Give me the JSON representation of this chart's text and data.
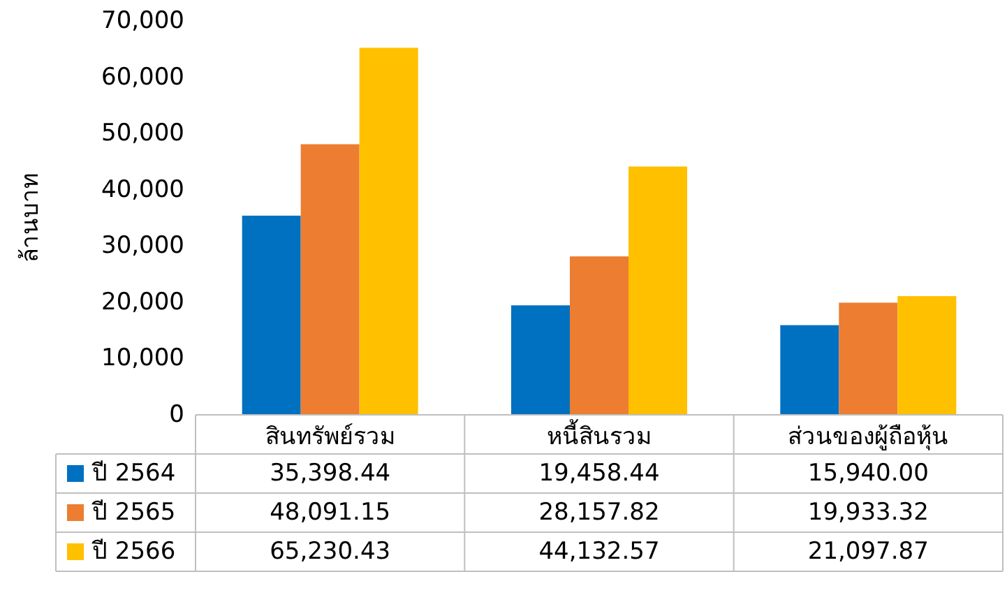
{
  "chart_data": {
    "type": "bar",
    "ylabel": "ล้านบาท",
    "categories": [
      "สินทรัพย์รวม",
      "หนี้สินรวม",
      "ส่วนของผู้ถือหุ้น"
    ],
    "series": [
      {
        "name": "ปี 2564",
        "color": "#0070c0",
        "values": [
          35398.44,
          19458.44,
          15940.0
        ],
        "value_labels": [
          "35,398.44",
          "19,458.44",
          "15,940.00"
        ]
      },
      {
        "name": "ปี 2565",
        "color": "#ed7d31",
        "values": [
          48091.15,
          28157.82,
          19933.32
        ],
        "value_labels": [
          "48,091.15",
          "28,157.82",
          "19,933.32"
        ]
      },
      {
        "name": "ปี 2566",
        "color": "#ffc000",
        "values": [
          65230.43,
          44132.57,
          21097.87
        ],
        "value_labels": [
          "65,230.43",
          "44,132.57",
          "21,097.87"
        ]
      }
    ],
    "ylim": [
      0,
      70000
    ],
    "yticks": [
      0,
      {
        "value": 10000,
        "label": "10,000"
      },
      {
        "value": 20000,
        "label": "20,000"
      },
      {
        "value": 30000,
        "label": "30,000"
      },
      {
        "value": 40000,
        "label": "40,000"
      },
      {
        "value": 50000,
        "label": "50,000"
      },
      {
        "value": 60000,
        "label": "60,000"
      },
      {
        "value": 70000,
        "label": "70,000"
      }
    ],
    "legend": "bottom",
    "grid": false
  }
}
